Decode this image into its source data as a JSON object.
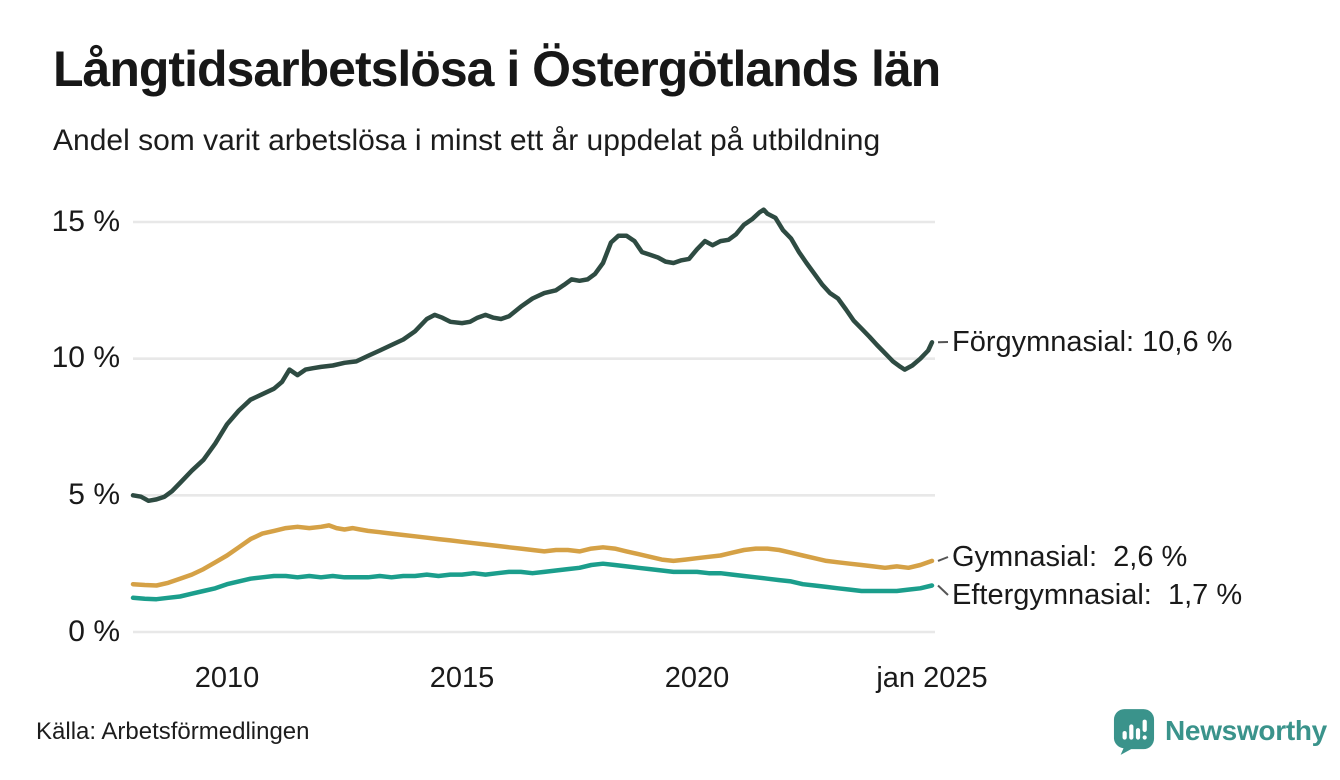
{
  "header": {
    "title": "Långtidsarbetslösa i Östergötlands län",
    "subtitle": "Andel som varit arbetslösa i minst ett år uppdelat på utbildning"
  },
  "chart_data": {
    "type": "line",
    "title": "Långtidsarbetslösa i Östergötlands län",
    "subtitle": "Andel som varit arbetslösa i minst ett år uppdelat på utbildning",
    "x_unit": "decimal_year_monthly",
    "xlim": [
      2008,
      2025
    ],
    "ylim": [
      0,
      15
    ],
    "grid": "horizontal",
    "legend_position": "direct-labels-right",
    "grid_color": "#e8e8e8",
    "y_ticks": [
      {
        "value": 0,
        "label": "0 %"
      },
      {
        "value": 5,
        "label": "5 %"
      },
      {
        "value": 10,
        "label": "10 %"
      },
      {
        "value": 15,
        "label": "15 %"
      }
    ],
    "x_ticks": [
      {
        "value": 2010,
        "label": "2010"
      },
      {
        "value": 2015,
        "label": "2015"
      },
      {
        "value": 2020,
        "label": "2020"
      },
      {
        "value": 2025,
        "label": "jan 2025"
      }
    ],
    "series": [
      {
        "name": "Förgymnasial",
        "color": "#2e4b42",
        "last_value_label": "10,6 %",
        "end_label": "Förgymnasial: 10,6 %",
        "points": [
          [
            2008.0,
            5.0
          ],
          [
            2008.17,
            4.95
          ],
          [
            2008.33,
            4.8
          ],
          [
            2008.5,
            4.85
          ],
          [
            2008.67,
            4.95
          ],
          [
            2008.83,
            5.15
          ],
          [
            2009.0,
            5.45
          ],
          [
            2009.25,
            5.9
          ],
          [
            2009.5,
            6.3
          ],
          [
            2009.75,
            6.9
          ],
          [
            2010.0,
            7.6
          ],
          [
            2010.25,
            8.1
          ],
          [
            2010.5,
            8.5
          ],
          [
            2010.75,
            8.7
          ],
          [
            2011.0,
            8.9
          ],
          [
            2011.17,
            9.15
          ],
          [
            2011.33,
            9.6
          ],
          [
            2011.5,
            9.4
          ],
          [
            2011.67,
            9.6
          ],
          [
            2011.83,
            9.65
          ],
          [
            2012.0,
            9.7
          ],
          [
            2012.25,
            9.75
          ],
          [
            2012.5,
            9.85
          ],
          [
            2012.75,
            9.9
          ],
          [
            2013.0,
            10.1
          ],
          [
            2013.25,
            10.3
          ],
          [
            2013.5,
            10.5
          ],
          [
            2013.75,
            10.7
          ],
          [
            2014.0,
            11.0
          ],
          [
            2014.25,
            11.45
          ],
          [
            2014.42,
            11.6
          ],
          [
            2014.58,
            11.5
          ],
          [
            2014.75,
            11.35
          ],
          [
            2015.0,
            11.3
          ],
          [
            2015.17,
            11.35
          ],
          [
            2015.33,
            11.5
          ],
          [
            2015.5,
            11.6
          ],
          [
            2015.67,
            11.5
          ],
          [
            2015.83,
            11.45
          ],
          [
            2016.0,
            11.55
          ],
          [
            2016.25,
            11.9
          ],
          [
            2016.5,
            12.2
          ],
          [
            2016.75,
            12.4
          ],
          [
            2017.0,
            12.5
          ],
          [
            2017.17,
            12.7
          ],
          [
            2017.33,
            12.9
          ],
          [
            2017.5,
            12.85
          ],
          [
            2017.67,
            12.9
          ],
          [
            2017.83,
            13.1
          ],
          [
            2018.0,
            13.5
          ],
          [
            2018.17,
            14.25
          ],
          [
            2018.33,
            14.5
          ],
          [
            2018.5,
            14.5
          ],
          [
            2018.67,
            14.3
          ],
          [
            2018.83,
            13.9
          ],
          [
            2019.0,
            13.8
          ],
          [
            2019.17,
            13.7
          ],
          [
            2019.33,
            13.55
          ],
          [
            2019.5,
            13.5
          ],
          [
            2019.67,
            13.6
          ],
          [
            2019.83,
            13.65
          ],
          [
            2020.0,
            14.0
          ],
          [
            2020.17,
            14.3
          ],
          [
            2020.33,
            14.15
          ],
          [
            2020.5,
            14.3
          ],
          [
            2020.67,
            14.35
          ],
          [
            2020.83,
            14.55
          ],
          [
            2021.0,
            14.9
          ],
          [
            2021.17,
            15.1
          ],
          [
            2021.33,
            15.35
          ],
          [
            2021.42,
            15.45
          ],
          [
            2021.5,
            15.3
          ],
          [
            2021.67,
            15.15
          ],
          [
            2021.83,
            14.7
          ],
          [
            2022.0,
            14.4
          ],
          [
            2022.17,
            13.9
          ],
          [
            2022.33,
            13.5
          ],
          [
            2022.5,
            13.1
          ],
          [
            2022.67,
            12.7
          ],
          [
            2022.83,
            12.4
          ],
          [
            2023.0,
            12.2
          ],
          [
            2023.17,
            11.8
          ],
          [
            2023.33,
            11.4
          ],
          [
            2023.5,
            11.1
          ],
          [
            2023.67,
            10.8
          ],
          [
            2023.83,
            10.5
          ],
          [
            2024.0,
            10.2
          ],
          [
            2024.17,
            9.9
          ],
          [
            2024.33,
            9.7
          ],
          [
            2024.42,
            9.6
          ],
          [
            2024.58,
            9.75
          ],
          [
            2024.75,
            10.0
          ],
          [
            2024.92,
            10.3
          ],
          [
            2025.0,
            10.6
          ]
        ]
      },
      {
        "name": "Gymnasial",
        "color": "#d5a146",
        "last_value_label": "2,6 %",
        "end_label": "Gymnasial:  2,6 %",
        "points": [
          [
            2008.0,
            1.75
          ],
          [
            2008.25,
            1.72
          ],
          [
            2008.5,
            1.7
          ],
          [
            2008.75,
            1.8
          ],
          [
            2009.0,
            1.95
          ],
          [
            2009.25,
            2.1
          ],
          [
            2009.5,
            2.3
          ],
          [
            2009.75,
            2.55
          ],
          [
            2010.0,
            2.8
          ],
          [
            2010.25,
            3.1
          ],
          [
            2010.5,
            3.4
          ],
          [
            2010.75,
            3.6
          ],
          [
            2011.0,
            3.7
          ],
          [
            2011.25,
            3.8
          ],
          [
            2011.5,
            3.85
          ],
          [
            2011.75,
            3.8
          ],
          [
            2012.0,
            3.85
          ],
          [
            2012.17,
            3.9
          ],
          [
            2012.33,
            3.8
          ],
          [
            2012.5,
            3.75
          ],
          [
            2012.67,
            3.8
          ],
          [
            2012.83,
            3.75
          ],
          [
            2013.0,
            3.7
          ],
          [
            2013.25,
            3.65
          ],
          [
            2013.5,
            3.6
          ],
          [
            2013.75,
            3.55
          ],
          [
            2014.0,
            3.5
          ],
          [
            2014.25,
            3.45
          ],
          [
            2014.5,
            3.4
          ],
          [
            2014.75,
            3.35
          ],
          [
            2015.0,
            3.3
          ],
          [
            2015.25,
            3.25
          ],
          [
            2015.5,
            3.2
          ],
          [
            2015.75,
            3.15
          ],
          [
            2016.0,
            3.1
          ],
          [
            2016.25,
            3.05
          ],
          [
            2016.5,
            3.0
          ],
          [
            2016.75,
            2.95
          ],
          [
            2017.0,
            3.0
          ],
          [
            2017.25,
            3.0
          ],
          [
            2017.5,
            2.95
          ],
          [
            2017.75,
            3.05
          ],
          [
            2018.0,
            3.1
          ],
          [
            2018.25,
            3.05
          ],
          [
            2018.5,
            2.95
          ],
          [
            2018.75,
            2.85
          ],
          [
            2019.0,
            2.75
          ],
          [
            2019.25,
            2.65
          ],
          [
            2019.5,
            2.6
          ],
          [
            2019.75,
            2.65
          ],
          [
            2020.0,
            2.7
          ],
          [
            2020.25,
            2.75
          ],
          [
            2020.5,
            2.8
          ],
          [
            2020.75,
            2.9
          ],
          [
            2021.0,
            3.0
          ],
          [
            2021.25,
            3.05
          ],
          [
            2021.5,
            3.05
          ],
          [
            2021.75,
            3.0
          ],
          [
            2022.0,
            2.9
          ],
          [
            2022.25,
            2.8
          ],
          [
            2022.5,
            2.7
          ],
          [
            2022.75,
            2.6
          ],
          [
            2023.0,
            2.55
          ],
          [
            2023.25,
            2.5
          ],
          [
            2023.5,
            2.45
          ],
          [
            2023.75,
            2.4
          ],
          [
            2024.0,
            2.35
          ],
          [
            2024.25,
            2.4
          ],
          [
            2024.5,
            2.35
          ],
          [
            2024.75,
            2.45
          ],
          [
            2025.0,
            2.6
          ]
        ]
      },
      {
        "name": "Eftergymnasial",
        "color": "#1b9e8c",
        "last_value_label": "1,7 %",
        "end_label": "Eftergymnasial:  1,7 %",
        "points": [
          [
            2008.0,
            1.25
          ],
          [
            2008.25,
            1.22
          ],
          [
            2008.5,
            1.2
          ],
          [
            2008.75,
            1.25
          ],
          [
            2009.0,
            1.3
          ],
          [
            2009.25,
            1.4
          ],
          [
            2009.5,
            1.5
          ],
          [
            2009.75,
            1.6
          ],
          [
            2010.0,
            1.75
          ],
          [
            2010.25,
            1.85
          ],
          [
            2010.5,
            1.95
          ],
          [
            2010.75,
            2.0
          ],
          [
            2011.0,
            2.05
          ],
          [
            2011.25,
            2.05
          ],
          [
            2011.5,
            2.0
          ],
          [
            2011.75,
            2.05
          ],
          [
            2012.0,
            2.0
          ],
          [
            2012.25,
            2.05
          ],
          [
            2012.5,
            2.0
          ],
          [
            2012.75,
            2.0
          ],
          [
            2013.0,
            2.0
          ],
          [
            2013.25,
            2.05
          ],
          [
            2013.5,
            2.0
          ],
          [
            2013.75,
            2.05
          ],
          [
            2014.0,
            2.05
          ],
          [
            2014.25,
            2.1
          ],
          [
            2014.5,
            2.05
          ],
          [
            2014.75,
            2.1
          ],
          [
            2015.0,
            2.1
          ],
          [
            2015.25,
            2.15
          ],
          [
            2015.5,
            2.1
          ],
          [
            2015.75,
            2.15
          ],
          [
            2016.0,
            2.2
          ],
          [
            2016.25,
            2.2
          ],
          [
            2016.5,
            2.15
          ],
          [
            2016.75,
            2.2
          ],
          [
            2017.0,
            2.25
          ],
          [
            2017.25,
            2.3
          ],
          [
            2017.5,
            2.35
          ],
          [
            2017.75,
            2.45
          ],
          [
            2018.0,
            2.5
          ],
          [
            2018.25,
            2.45
          ],
          [
            2018.5,
            2.4
          ],
          [
            2018.75,
            2.35
          ],
          [
            2019.0,
            2.3
          ],
          [
            2019.25,
            2.25
          ],
          [
            2019.5,
            2.2
          ],
          [
            2019.75,
            2.2
          ],
          [
            2020.0,
            2.2
          ],
          [
            2020.25,
            2.15
          ],
          [
            2020.5,
            2.15
          ],
          [
            2020.75,
            2.1
          ],
          [
            2021.0,
            2.05
          ],
          [
            2021.25,
            2.0
          ],
          [
            2021.5,
            1.95
          ],
          [
            2021.75,
            1.9
          ],
          [
            2022.0,
            1.85
          ],
          [
            2022.25,
            1.75
          ],
          [
            2022.5,
            1.7
          ],
          [
            2022.75,
            1.65
          ],
          [
            2023.0,
            1.6
          ],
          [
            2023.25,
            1.55
          ],
          [
            2023.5,
            1.5
          ],
          [
            2023.75,
            1.5
          ],
          [
            2024.0,
            1.5
          ],
          [
            2024.25,
            1.5
          ],
          [
            2024.5,
            1.55
          ],
          [
            2024.75,
            1.6
          ],
          [
            2025.0,
            1.7
          ]
        ]
      }
    ]
  },
  "footer": {
    "source": "Källa: Arbetsförmedlingen",
    "brand": "Newsworthy",
    "brand_color": "#3a938b"
  }
}
